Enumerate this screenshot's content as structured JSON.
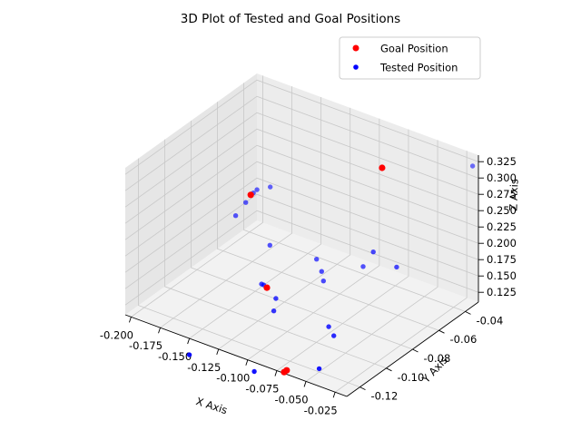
{
  "chart_data": {
    "type": "scatter3d",
    "title": "3D Plot of Tested and Goal Positions",
    "xlabel": "X Axis",
    "ylabel": "Y Axis",
    "zlabel": "Z Axis",
    "xlim": [
      -0.205,
      -0.015
    ],
    "ylim": [
      -0.13,
      -0.03
    ],
    "zlim": [
      0.11,
      0.335
    ],
    "x_ticks": [
      "-0.200",
      "-0.175",
      "-0.150",
      "-0.125",
      "-0.100",
      "-0.075",
      "-0.050",
      "-0.025"
    ],
    "y_ticks": [
      "-0.12",
      "-0.10",
      "-0.08",
      "-0.06",
      "-0.04"
    ],
    "z_ticks": [
      "0.125",
      "0.150",
      "0.175",
      "0.200",
      "0.225",
      "0.250",
      "0.275",
      "0.300",
      "0.325"
    ],
    "legend_position": "top-right",
    "grid": true,
    "series": [
      {
        "name": "Goal Position",
        "color": "#ff0000",
        "points": [
          {
            "x": -0.075,
            "y": -0.05,
            "z": 0.305
          },
          {
            "x": -0.19,
            "y": -0.048,
            "z": 0.185
          },
          {
            "x": -0.14,
            "y": -0.08,
            "z": 0.122
          },
          {
            "x": -0.08,
            "y": -0.12,
            "z": 0.09
          },
          {
            "x": -0.079,
            "y": -0.119,
            "z": 0.092
          }
        ]
      },
      {
        "name": "Tested Position",
        "color": "#0000ff",
        "points": [
          {
            "x": -0.02,
            "y": -0.03,
            "z": 0.315
          },
          {
            "x": -0.06,
            "y": -0.07,
            "z": 0.215
          },
          {
            "x": -0.04,
            "y": -0.07,
            "z": 0.205
          },
          {
            "x": -0.188,
            "y": -0.045,
            "z": 0.19
          },
          {
            "x": -0.19,
            "y": -0.046,
            "z": 0.185
          },
          {
            "x": -0.18,
            "y": -0.042,
            "z": 0.195
          },
          {
            "x": -0.192,
            "y": -0.05,
            "z": 0.175
          },
          {
            "x": -0.195,
            "y": -0.055,
            "z": 0.16
          },
          {
            "x": -0.08,
            "y": -0.06,
            "z": 0.165
          },
          {
            "x": -0.12,
            "y": -0.06,
            "z": 0.15
          },
          {
            "x": -0.11,
            "y": -0.065,
            "z": 0.145
          },
          {
            "x": -0.105,
            "y": -0.068,
            "z": 0.138
          },
          {
            "x": -0.16,
            "y": -0.06,
            "z": 0.145
          },
          {
            "x": -0.145,
            "y": -0.078,
            "z": 0.12
          },
          {
            "x": -0.148,
            "y": -0.077,
            "z": 0.118
          },
          {
            "x": -0.13,
            "y": -0.082,
            "z": 0.115
          },
          {
            "x": -0.125,
            "y": -0.088,
            "z": 0.108
          },
          {
            "x": -0.07,
            "y": -0.095,
            "z": 0.13
          },
          {
            "x": -0.06,
            "y": -0.1,
            "z": 0.13
          },
          {
            "x": -0.05,
            "y": -0.12,
            "z": 0.115
          },
          {
            "x": -0.15,
            "y": -0.13,
            "z": 0.085
          },
          {
            "x": -0.1,
            "y": -0.125,
            "z": 0.085
          }
        ]
      }
    ]
  }
}
